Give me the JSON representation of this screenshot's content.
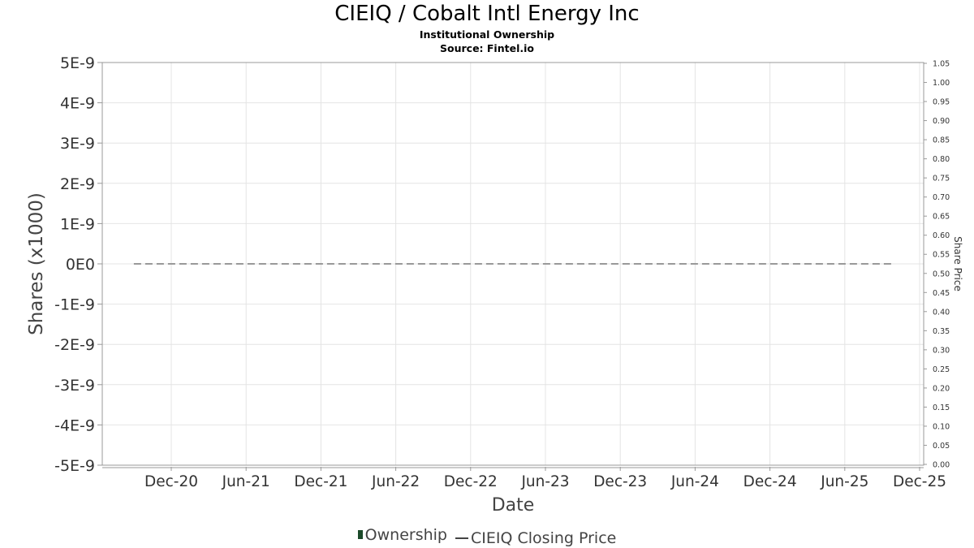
{
  "header": {
    "title": "CIEIQ / Cobalt Intl Energy Inc",
    "subtitle": "Institutional Ownership",
    "source": "Source: Fintel.io"
  },
  "legend": {
    "ownership": "Ownership",
    "price": "CIEIQ Closing Price"
  },
  "colors": {
    "ownership": "#1c4a2a",
    "price_line": "#999999",
    "grid": "#e4e4e4",
    "axis": "#999999"
  },
  "chart_data": {
    "type": "line",
    "xlabel": "Date",
    "ylabel": "Shares (x1000)",
    "y2label": "Share Price",
    "categories": [
      "Dec-20",
      "Jun-21",
      "Dec-21",
      "Jun-22",
      "Dec-22",
      "Jun-23",
      "Dec-23",
      "Jun-24",
      "Dec-24",
      "Jun-25",
      "Dec-25"
    ],
    "y_ticks": [
      "5E-9",
      "4E-9",
      "3E-9",
      "2E-9",
      "1E-9",
      "0E0",
      "-1E-9",
      "-2E-9",
      "-3E-9",
      "-4E-9",
      "-5E-9"
    ],
    "y2_ticks": [
      "1.05",
      "1.00",
      "0.95",
      "0.90",
      "0.85",
      "0.80",
      "0.75",
      "0.70",
      "0.65",
      "0.60",
      "0.55",
      "0.50",
      "0.45",
      "0.40",
      "0.35",
      "0.30",
      "0.25",
      "0.20",
      "0.15",
      "0.10",
      "0.05",
      "0.00"
    ],
    "ylim": [
      -5e-09,
      5e-09
    ],
    "y2lim": [
      0,
      1.05
    ],
    "grid": true,
    "legend_position": "bottom",
    "series": [
      {
        "name": "CIEIQ Closing Price",
        "style": "dashed",
        "axis": "left",
        "x": [
          "2020-09",
          "2025-10"
        ],
        "values": [
          0,
          0
        ]
      }
    ]
  }
}
